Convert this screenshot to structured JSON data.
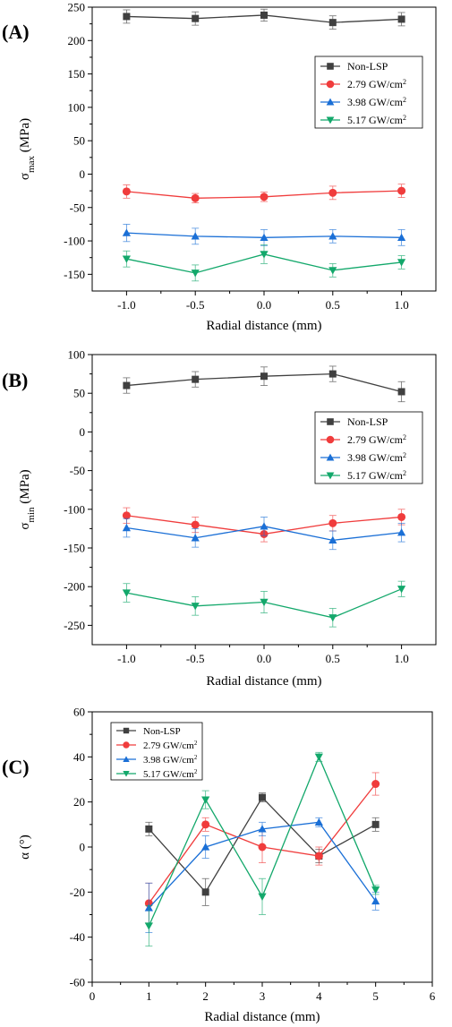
{
  "chart_data": [
    {
      "type": "line",
      "panel_label": "(A)",
      "ylabel": {
        "main": "σ",
        "sub": "max",
        "unit": " (MPa)"
      },
      "xlabel": "Radial distance (mm)",
      "xlim": [
        -1.25,
        1.25
      ],
      "ylim": [
        -175,
        250
      ],
      "x_ticks": [
        -1.0,
        -0.5,
        0.0,
        0.5,
        1.0
      ],
      "x_tick_labels": [
        "-1.0",
        "-0.5",
        "0.0",
        "0.5",
        "1.0"
      ],
      "y_ticks": [
        -150,
        -100,
        -50,
        0,
        50,
        100,
        150,
        200,
        250
      ],
      "y_tick_labels": [
        "-150",
        "-100",
        "-50",
        "0",
        "50",
        "100",
        "150",
        "200",
        "250"
      ],
      "grid": false,
      "legend_position": "right",
      "x": [
        -1.0,
        -0.5,
        0.0,
        0.5,
        1.0
      ],
      "series": [
        {
          "name": "Non-LSP",
          "name_sup": "",
          "color": "#404040",
          "marker": "square",
          "values": [
            236,
            233,
            238,
            227,
            232
          ],
          "errors": [
            10,
            10,
            9,
            10,
            10
          ]
        },
        {
          "name": "2.79 GW/cm",
          "name_sup": "2",
          "color": "#f03c3c",
          "marker": "circle",
          "values": [
            -26,
            -36,
            -34,
            -28,
            -25
          ],
          "errors": [
            10,
            7,
            7,
            10,
            10
          ]
        },
        {
          "name": "3.98 GW/cm",
          "name_sup": "2",
          "color": "#1a6fd6",
          "marker": "triangle-up",
          "values": [
            -88,
            -93,
            -95,
            -93,
            -95
          ],
          "errors": [
            13,
            12,
            12,
            10,
            12
          ]
        },
        {
          "name": "5.17 GW/cm",
          "name_sup": "2",
          "color": "#13a86b",
          "marker": "triangle-down",
          "values": [
            -127,
            -148,
            -120,
            -144,
            -132
          ],
          "errors": [
            12,
            12,
            14,
            10,
            10
          ]
        }
      ]
    },
    {
      "type": "line",
      "panel_label": "(B)",
      "ylabel": {
        "main": "σ",
        "sub": "min",
        "unit": " (MPa)"
      },
      "xlabel": "Radial distance (mm)",
      "xlim": [
        -1.25,
        1.25
      ],
      "ylim": [
        -275,
        100
      ],
      "x_ticks": [
        -1.0,
        -0.5,
        0.0,
        0.5,
        1.0
      ],
      "x_tick_labels": [
        "-1.0",
        "-0.5",
        "0.0",
        "0.5",
        "1.0"
      ],
      "y_ticks": [
        -250,
        -200,
        -150,
        -100,
        -50,
        0,
        50,
        100
      ],
      "y_tick_labels": [
        "-250",
        "-200",
        "-150",
        "-100",
        "-50",
        "0",
        "50",
        "100"
      ],
      "grid": false,
      "legend_position": "right",
      "x": [
        -1.0,
        -0.5,
        0.0,
        0.5,
        1.0
      ],
      "series": [
        {
          "name": "Non-LSP",
          "name_sup": "",
          "color": "#404040",
          "marker": "square",
          "values": [
            60,
            68,
            72,
            75,
            52
          ],
          "errors": [
            10,
            10,
            12,
            10,
            13
          ]
        },
        {
          "name": "2.79 GW/cm",
          "name_sup": "2",
          "color": "#f03c3c",
          "marker": "circle",
          "values": [
            -108,
            -120,
            -132,
            -118,
            -110
          ],
          "errors": [
            10,
            10,
            10,
            10,
            10
          ]
        },
        {
          "name": "3.98 GW/cm",
          "name_sup": "2",
          "color": "#1a6fd6",
          "marker": "triangle-up",
          "values": [
            -124,
            -137,
            -122,
            -140,
            -130
          ],
          "errors": [
            12,
            12,
            12,
            12,
            12
          ]
        },
        {
          "name": "5.17 GW/cm",
          "name_sup": "2",
          "color": "#13a86b",
          "marker": "triangle-down",
          "values": [
            -208,
            -225,
            -220,
            -240,
            -203
          ],
          "errors": [
            12,
            12,
            14,
            12,
            10
          ]
        }
      ]
    },
    {
      "type": "line",
      "panel_label": "(C)",
      "ylabel": {
        "main": "α (°)",
        "sub": "",
        "unit": ""
      },
      "xlabel": "Radial distance (mm)",
      "xlim": [
        0,
        6
      ],
      "ylim": [
        -60,
        60
      ],
      "x_ticks": [
        0,
        1,
        2,
        3,
        4,
        5,
        6
      ],
      "x_tick_labels": [
        "0",
        "1",
        "2",
        "3",
        "4",
        "5",
        "6"
      ],
      "y_ticks": [
        -60,
        -40,
        -20,
        0,
        20,
        40,
        60
      ],
      "y_tick_labels": [
        "-60",
        "-40",
        "-20",
        "0",
        "20",
        "40",
        "60"
      ],
      "grid": false,
      "legend_position": "top-left",
      "x": [
        1,
        2,
        3,
        4,
        5
      ],
      "series": [
        {
          "name": "Non-LSP",
          "name_sup": "",
          "color": "#404040",
          "marker": "square",
          "values": [
            8,
            -20,
            22,
            -4,
            10
          ],
          "errors": [
            3,
            6,
            2,
            3,
            3
          ]
        },
        {
          "name": "2.79 GW/cm",
          "name_sup": "2",
          "color": "#f03c3c",
          "marker": "circle",
          "values": [
            -25,
            10,
            0,
            -4,
            28
          ],
          "errors": [
            9,
            3,
            7,
            4,
            5
          ]
        },
        {
          "name": "3.98 GW/cm",
          "name_sup": "2",
          "color": "#1a6fd6",
          "marker": "triangle-up",
          "values": [
            -27,
            0,
            8,
            11,
            -24
          ],
          "errors": [
            11,
            5,
            3,
            2,
            4
          ]
        },
        {
          "name": "5.17 GW/cm",
          "name_sup": "2",
          "color": "#13a86b",
          "marker": "triangle-down",
          "values": [
            -35,
            21,
            -22,
            40,
            -19
          ],
          "errors": [
            9,
            4,
            8,
            2,
            2
          ]
        }
      ]
    }
  ]
}
